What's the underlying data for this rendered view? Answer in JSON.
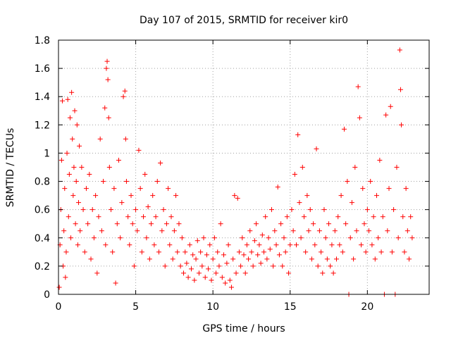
{
  "chart_data": {
    "type": "scatter",
    "title": "Day 107 of 2015, SRMTID for receiver kir0",
    "xlabel": "GPS time / hours",
    "ylabel": "SRMTID / TECUs",
    "xlim": [
      0,
      24
    ],
    "ylim": [
      0,
      1.8
    ],
    "xticks": [
      0,
      5,
      10,
      15,
      20
    ],
    "yticks": [
      0,
      0.2,
      0.4,
      0.6,
      0.8,
      1,
      1.2,
      1.4,
      1.6,
      1.8
    ],
    "xtick_labels": [
      "0",
      "5",
      "10",
      "15",
      "20"
    ],
    "ytick_labels": [
      "0",
      "0.2",
      "0.4",
      "0.6",
      "0.8",
      "1",
      "1.2",
      "1.4",
      "1.6",
      "1.8"
    ],
    "grid": true,
    "marker": "+",
    "series": [
      {
        "name": "SRMTID",
        "color": "#ff0000",
        "points": [
          [
            0.05,
            0.05
          ],
          [
            0.1,
            0.35
          ],
          [
            0.15,
            0.6
          ],
          [
            0.2,
            0.95
          ],
          [
            0.25,
            1.37
          ],
          [
            0.3,
            0.2
          ],
          [
            0.35,
            0.45
          ],
          [
            0.4,
            0.75
          ],
          [
            0.45,
            0.12
          ],
          [
            0.5,
            0.3
          ],
          [
            0.55,
            1.0
          ],
          [
            0.6,
            1.38
          ],
          [
            0.65,
            0.55
          ],
          [
            0.7,
            0.85
          ],
          [
            0.75,
            1.25
          ],
          [
            0.8,
            0.4
          ],
          [
            0.85,
            1.43
          ],
          [
            0.9,
            1.1
          ],
          [
            0.95,
            0.7
          ],
          [
            1.0,
            0.9
          ],
          [
            1.05,
            1.3
          ],
          [
            1.1,
            0.5
          ],
          [
            1.15,
            0.8
          ],
          [
            1.2,
            1.2
          ],
          [
            1.25,
            0.35
          ],
          [
            1.3,
            0.65
          ],
          [
            1.35,
            1.05
          ],
          [
            1.4,
            0.45
          ],
          [
            1.5,
            0.9
          ],
          [
            1.6,
            0.6
          ],
          [
            1.7,
            0.3
          ],
          [
            1.8,
            0.75
          ],
          [
            1.9,
            0.5
          ],
          [
            2.0,
            0.85
          ],
          [
            2.1,
            0.25
          ],
          [
            2.2,
            0.6
          ],
          [
            2.3,
            0.4
          ],
          [
            2.4,
            0.7
          ],
          [
            2.5,
            0.15
          ],
          [
            2.6,
            0.55
          ],
          [
            2.7,
            1.1
          ],
          [
            2.8,
            0.45
          ],
          [
            2.9,
            0.8
          ],
          [
            3.0,
            1.32
          ],
          [
            3.05,
            0.35
          ],
          [
            3.1,
            1.6
          ],
          [
            3.15,
            1.65
          ],
          [
            3.2,
            1.52
          ],
          [
            3.25,
            1.25
          ],
          [
            3.3,
            0.9
          ],
          [
            3.4,
            0.6
          ],
          [
            3.5,
            0.3
          ],
          [
            3.6,
            0.75
          ],
          [
            3.7,
            0.08
          ],
          [
            3.8,
            0.5
          ],
          [
            3.9,
            0.95
          ],
          [
            4.0,
            0.4
          ],
          [
            4.1,
            0.65
          ],
          [
            4.2,
            1.4
          ],
          [
            4.3,
            1.44
          ],
          [
            4.35,
            1.1
          ],
          [
            4.4,
            0.8
          ],
          [
            4.5,
            0.55
          ],
          [
            4.6,
            0.35
          ],
          [
            4.7,
            0.7
          ],
          [
            4.8,
            0.5
          ],
          [
            4.9,
            0.2
          ],
          [
            5.0,
            0.6
          ],
          [
            5.1,
            0.45
          ],
          [
            5.2,
            1.02
          ],
          [
            5.3,
            0.75
          ],
          [
            5.4,
            0.3
          ],
          [
            5.5,
            0.55
          ],
          [
            5.6,
            0.85
          ],
          [
            5.7,
            0.4
          ],
          [
            5.8,
            0.62
          ],
          [
            5.9,
            0.25
          ],
          [
            6.0,
            0.5
          ],
          [
            6.1,
            0.7
          ],
          [
            6.2,
            0.35
          ],
          [
            6.3,
            0.55
          ],
          [
            6.4,
            0.8
          ],
          [
            6.5,
            0.3
          ],
          [
            6.6,
            0.93
          ],
          [
            6.7,
            0.45
          ],
          [
            6.8,
            0.6
          ],
          [
            6.9,
            0.2
          ],
          [
            7.0,
            0.5
          ],
          [
            7.1,
            0.75
          ],
          [
            7.2,
            0.35
          ],
          [
            7.3,
            0.55
          ],
          [
            7.4,
            0.25
          ],
          [
            7.5,
            0.45
          ],
          [
            7.6,
            0.7
          ],
          [
            7.7,
            0.3
          ],
          [
            7.8,
            0.5
          ],
          [
            7.9,
            0.2
          ],
          [
            8.0,
            0.4
          ],
          [
            8.1,
            0.15
          ],
          [
            8.2,
            0.3
          ],
          [
            8.3,
            0.22
          ],
          [
            8.4,
            0.12
          ],
          [
            8.5,
            0.35
          ],
          [
            8.6,
            0.18
          ],
          [
            8.7,
            0.28
          ],
          [
            8.8,
            0.1
          ],
          [
            8.9,
            0.25
          ],
          [
            9.0,
            0.38
          ],
          [
            9.1,
            0.15
          ],
          [
            9.2,
            0.3
          ],
          [
            9.3,
            0.2
          ],
          [
            9.4,
            0.4
          ],
          [
            9.5,
            0.12
          ],
          [
            9.6,
            0.28
          ],
          [
            9.7,
            0.18
          ],
          [
            9.8,
            0.35
          ],
          [
            9.9,
            0.1
          ],
          [
            10.0,
            0.25
          ],
          [
            10.1,
            0.4
          ],
          [
            10.2,
            0.15
          ],
          [
            10.3,
            0.3
          ],
          [
            10.4,
            0.2
          ],
          [
            10.5,
            0.5
          ],
          [
            10.6,
            0.12
          ],
          [
            10.7,
            0.28
          ],
          [
            10.8,
            0.08
          ],
          [
            10.9,
            0.22
          ],
          [
            11.0,
            0.35
          ],
          [
            11.1,
            0.1
          ],
          [
            11.2,
            0.05
          ],
          [
            11.3,
            0.25
          ],
          [
            11.4,
            0.7
          ],
          [
            11.5,
            0.15
          ],
          [
            11.6,
            0.68
          ],
          [
            11.7,
            0.3
          ],
          [
            11.8,
            0.2
          ],
          [
            11.9,
            0.4
          ],
          [
            12.0,
            0.28
          ],
          [
            12.1,
            0.15
          ],
          [
            12.2,
            0.35
          ],
          [
            12.3,
            0.25
          ],
          [
            12.4,
            0.45
          ],
          [
            12.5,
            0.3
          ],
          [
            12.6,
            0.2
          ],
          [
            12.7,
            0.38
          ],
          [
            12.8,
            0.5
          ],
          [
            12.9,
            0.28
          ],
          [
            13.0,
            0.35
          ],
          [
            13.1,
            0.22
          ],
          [
            13.2,
            0.42
          ],
          [
            13.3,
            0.3
          ],
          [
            13.4,
            0.55
          ],
          [
            13.5,
            0.25
          ],
          [
            13.6,
            0.4
          ],
          [
            13.7,
            0.32
          ],
          [
            13.8,
            0.6
          ],
          [
            13.9,
            0.2
          ],
          [
            14.0,
            0.45
          ],
          [
            14.1,
            0.35
          ],
          [
            14.2,
            0.76
          ],
          [
            14.3,
            0.28
          ],
          [
            14.4,
            0.5
          ],
          [
            14.5,
            0.2
          ],
          [
            14.6,
            0.4
          ],
          [
            14.7,
            0.3
          ],
          [
            14.8,
            0.55
          ],
          [
            14.9,
            0.15
          ],
          [
            15.0,
            0.35
          ],
          [
            15.1,
            0.6
          ],
          [
            15.2,
            0.45
          ],
          [
            15.3,
            0.85
          ],
          [
            15.4,
            0.35
          ],
          [
            15.5,
            1.13
          ],
          [
            15.6,
            0.65
          ],
          [
            15.7,
            0.4
          ],
          [
            15.8,
            0.9
          ],
          [
            15.9,
            0.55
          ],
          [
            16.0,
            0.3
          ],
          [
            16.1,
            0.7
          ],
          [
            16.2,
            0.45
          ],
          [
            16.3,
            0.6
          ],
          [
            16.4,
            0.25
          ],
          [
            16.5,
            0.5
          ],
          [
            16.6,
            0.35
          ],
          [
            16.7,
            1.03
          ],
          [
            16.8,
            0.2
          ],
          [
            16.9,
            0.45
          ],
          [
            17.0,
            0.3
          ],
          [
            17.1,
            0.15
          ],
          [
            17.2,
            0.6
          ],
          [
            17.3,
            0.4
          ],
          [
            17.4,
            0.25
          ],
          [
            17.5,
            0.5
          ],
          [
            17.6,
            0.2
          ],
          [
            17.7,
            0.35
          ],
          [
            17.8,
            0.15
          ],
          [
            17.9,
            0.45
          ],
          [
            18.0,
            0.25
          ],
          [
            18.1,
            0.55
          ],
          [
            18.2,
            0.35
          ],
          [
            18.3,
            0.7
          ],
          [
            18.4,
            0.3
          ],
          [
            18.5,
            1.17
          ],
          [
            18.6,
            0.5
          ],
          [
            18.7,
            0.8
          ],
          [
            18.8,
            0.0
          ],
          [
            18.9,
            0.4
          ],
          [
            19.0,
            0.65
          ],
          [
            19.1,
            0.25
          ],
          [
            19.2,
            0.9
          ],
          [
            19.3,
            0.45
          ],
          [
            19.4,
            1.47
          ],
          [
            19.5,
            1.25
          ],
          [
            19.6,
            0.35
          ],
          [
            19.7,
            0.75
          ],
          [
            19.8,
            0.5
          ],
          [
            19.9,
            0.3
          ],
          [
            20.0,
            0.6
          ],
          [
            20.1,
            0.45
          ],
          [
            20.2,
            0.8
          ],
          [
            20.3,
            0.35
          ],
          [
            20.4,
            0.55
          ],
          [
            20.5,
            0.25
          ],
          [
            20.6,
            0.7
          ],
          [
            20.7,
            0.4
          ],
          [
            20.8,
            0.95
          ],
          [
            20.9,
            0.3
          ],
          [
            21.0,
            0.55
          ],
          [
            21.1,
            0.0
          ],
          [
            21.2,
            1.27
          ],
          [
            21.3,
            0.45
          ],
          [
            21.4,
            0.75
          ],
          [
            21.5,
            1.33
          ],
          [
            21.6,
            0.3
          ],
          [
            21.7,
            0.6
          ],
          [
            21.8,
            0.0
          ],
          [
            21.9,
            0.9
          ],
          [
            22.0,
            0.4
          ],
          [
            22.1,
            1.73
          ],
          [
            22.15,
            1.45
          ],
          [
            22.2,
            1.2
          ],
          [
            22.3,
            0.55
          ],
          [
            22.4,
            0.3
          ],
          [
            22.5,
            0.75
          ],
          [
            22.6,
            0.45
          ],
          [
            22.7,
            0.25
          ],
          [
            22.8,
            0.55
          ],
          [
            22.9,
            0.4
          ]
        ]
      }
    ]
  }
}
